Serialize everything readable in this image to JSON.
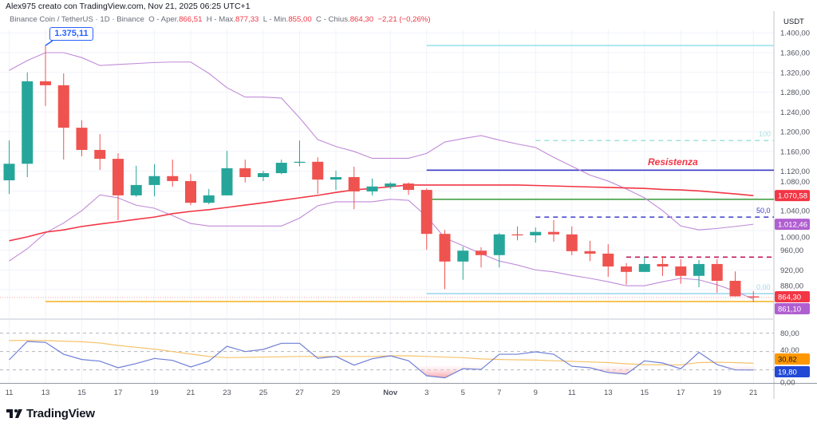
{
  "header": {
    "text": "Alex975 creato con TradingView.com, Nov 21, 2025 06:25 UTC+1"
  },
  "legend": {
    "symbol": "Binance Coin / TetherUS · 1D · Binance",
    "open_label": "O - Aper.",
    "open": "866,51",
    "high_label": "H - Max.",
    "high": "877,33",
    "low_label": "L - Min.",
    "low": "855,00",
    "close_label": "C - Chius.",
    "close": "864,30",
    "change": "−2,21 (−0,26%)"
  },
  "annotations": {
    "high_callout": "1.375,11",
    "resistance_label": "Resistenza",
    "fib_100": "100",
    "fib_50": "50,0",
    "fib_0": "0,00"
  },
  "price_axis": {
    "unit": "USDT",
    "ticks": [
      {
        "value": 1400,
        "label": "1.400,00"
      },
      {
        "value": 1360,
        "label": "1.360,00"
      },
      {
        "value": 1320,
        "label": "1.320,00"
      },
      {
        "value": 1280,
        "label": "1.280,00"
      },
      {
        "value": 1240,
        "label": "1.240,00"
      },
      {
        "value": 1200,
        "label": "1.200,00"
      },
      {
        "value": 1160,
        "label": "1.160,00"
      },
      {
        "value": 1120,
        "label": "1.120,00"
      },
      {
        "value": 1080,
        "label": "1.080,00"
      },
      {
        "value": 1040,
        "label": "1.040,00"
      },
      {
        "value": 1000,
        "label": "1.000,00"
      },
      {
        "value": 960,
        "label": "960,00"
      },
      {
        "value": 920,
        "label": "920,00"
      },
      {
        "value": 880,
        "label": "880,00"
      }
    ],
    "badges": [
      {
        "value": 1070.58,
        "label": "1.070,58",
        "color": "#f23645"
      },
      {
        "value": 1012.46,
        "label": "1.012,46",
        "color": "#b05fd0"
      },
      {
        "value": 864.3,
        "label": "864,30",
        "color": "#f23645"
      },
      {
        "value": 861.1,
        "label": "861,10",
        "color": "#b05fd0"
      }
    ]
  },
  "oscillator_axis": {
    "ticks": [
      {
        "value": 80,
        "label": "80,00"
      },
      {
        "value": 40,
        "label": "40,00"
      },
      {
        "value": 0,
        "label": "0,00"
      }
    ],
    "levels": [
      80,
      50,
      20
    ],
    "badges": [
      {
        "value": 30.82,
        "label": "30,82",
        "color": "#ff9800",
        "text_color": "#131722"
      },
      {
        "value": 19.8,
        "label": "19,80",
        "color": "#2149d6",
        "text_color": "#ffffff"
      }
    ]
  },
  "x_axis": {
    "labels": [
      {
        "day": 0,
        "label": "11"
      },
      {
        "day": 2,
        "label": "13"
      },
      {
        "day": 4,
        "label": "15"
      },
      {
        "day": 6,
        "label": "17"
      },
      {
        "day": 8,
        "label": "19"
      },
      {
        "day": 10,
        "label": "21"
      },
      {
        "day": 12,
        "label": "23"
      },
      {
        "day": 14,
        "label": "25"
      },
      {
        "day": 16,
        "label": "27"
      },
      {
        "day": 18,
        "label": "29"
      },
      {
        "day": 21,
        "label": "Nov"
      },
      {
        "day": 23,
        "label": "3"
      },
      {
        "day": 25,
        "label": "5"
      },
      {
        "day": 27,
        "label": "7"
      },
      {
        "day": 29,
        "label": "9"
      },
      {
        "day": 31,
        "label": "11"
      },
      {
        "day": 33,
        "label": "13"
      },
      {
        "day": 35,
        "label": "15"
      },
      {
        "day": 37,
        "label": "17"
      },
      {
        "day": 39,
        "label": "19"
      },
      {
        "day": 41,
        "label": "21"
      }
    ]
  },
  "colors": {
    "up": "#26a69a",
    "down": "#ef5350",
    "ema": "#f23645",
    "bands": "#c08ad8",
    "rsi": "#6f7fd6",
    "rsi_ma": "#f5c26b",
    "grid": "#f0f3fa"
  },
  "chart_data": {
    "type": "candlestick",
    "candles_ohlc": [
      [
        1101.5,
        1182,
        1074,
        1135
      ],
      [
        1135,
        1320,
        1108,
        1302
      ],
      [
        1302,
        1375.11,
        1252,
        1294
      ],
      [
        1294,
        1318,
        1143.5,
        1208
      ],
      [
        1208,
        1223,
        1150,
        1163
      ],
      [
        1163,
        1195,
        1122.5,
        1145
      ],
      [
        1145,
        1156,
        1020.7,
        1071
      ],
      [
        1071,
        1131,
        1068,
        1092
      ],
      [
        1092,
        1134,
        1069,
        1110
      ],
      [
        1110,
        1143.5,
        1088.6,
        1100
      ],
      [
        1100,
        1114,
        1051,
        1056
      ],
      [
        1056,
        1084,
        1053,
        1071
      ],
      [
        1071,
        1161,
        1071,
        1126
      ],
      [
        1126,
        1143.5,
        1097,
        1108
      ],
      [
        1108,
        1121,
        1100,
        1116
      ],
      [
        1116,
        1143.5,
        1114,
        1137
      ],
      [
        1137,
        1182,
        1130,
        1139
      ],
      [
        1139,
        1148,
        1074,
        1103
      ],
      [
        1103,
        1121,
        1082,
        1108
      ],
      [
        1108,
        1129,
        1043,
        1079
      ],
      [
        1079,
        1105,
        1071,
        1089
      ],
      [
        1089,
        1098,
        1084,
        1095
      ],
      [
        1095,
        1097,
        1072,
        1082
      ],
      [
        1082,
        1085,
        960.9,
        993
      ],
      [
        993,
        1001,
        881,
        937
      ],
      [
        937,
        967,
        900,
        959
      ],
      [
        959,
        966,
        925,
        950
      ],
      [
        950,
        995,
        925,
        992
      ],
      [
        992,
        1008,
        980,
        990
      ],
      [
        990,
        1006,
        975.5,
        997
      ],
      [
        997,
        1021,
        977,
        992
      ],
      [
        992,
        1008,
        950,
        958
      ],
      [
        958,
        979,
        938,
        953
      ],
      [
        953,
        972,
        906,
        927
      ],
      [
        927,
        934,
        890,
        916
      ],
      [
        916,
        946,
        916,
        932
      ],
      [
        932,
        948,
        908,
        927
      ],
      [
        927,
        942,
        892,
        908
      ],
      [
        908,
        940,
        885,
        932
      ],
      [
        932,
        942,
        874,
        898
      ],
      [
        898,
        917,
        866,
        866.5
      ],
      [
        866.51,
        877.33,
        855,
        864.3
      ]
    ],
    "ema": [
      979,
      987,
      996.5,
      1001,
      1008,
      1013,
      1017.5,
      1022.4,
      1027,
      1034,
      1038.5,
      1042,
      1046.6,
      1051.4,
      1056,
      1061,
      1066,
      1071,
      1077,
      1082,
      1085,
      1088.6,
      1092,
      1092,
      1092,
      1092,
      1092,
      1092,
      1092,
      1091,
      1090,
      1089,
      1088,
      1087,
      1086,
      1085,
      1083,
      1082,
      1080,
      1077,
      1074,
      1070.58
    ],
    "bb_upper": [
      1324,
      1344,
      1360,
      1360,
      1350,
      1334,
      1336,
      1338,
      1340,
      1341,
      1341,
      1318,
      1289,
      1270,
      1270,
      1268,
      1228,
      1184,
      1170,
      1160,
      1146,
      1146,
      1146,
      1156,
      1179,
      1186,
      1192,
      1183,
      1175,
      1168,
      1148,
      1130,
      1112,
      1100,
      1084,
      1066,
      1040,
      1009,
      1001,
      1004,
      1008,
      1012.46
    ],
    "bb_lower": [
      938,
      963,
      995,
      1015,
      1040,
      1072,
      1066,
      1051,
      1045,
      1030,
      1014,
      1009,
      1009,
      1009,
      1009,
      1009,
      1025,
      1050,
      1058,
      1058,
      1058,
      1063,
      1061,
      1028,
      985,
      969,
      953,
      938,
      930,
      920,
      916,
      909,
      903,
      896,
      888,
      888,
      896,
      903,
      900,
      890,
      877,
      861.1
    ],
    "levels": [
      {
        "price": 1374.5,
        "from_day": 23,
        "color": "#9be3ea",
        "style": "solid"
      },
      {
        "price": 1182,
        "from_day": 29,
        "color": "#a7e3dc",
        "style": "dashed"
      },
      {
        "price": 1122,
        "from_day": 23,
        "color": "#3f3fc9",
        "style": "solid"
      },
      {
        "price": 1063,
        "from_day": 23,
        "color": "#43a047",
        "style": "solid"
      },
      {
        "price": 1027,
        "from_day": 29,
        "color": "#3f3fc9",
        "style": "dashed"
      },
      {
        "price": 946,
        "from_day": 34,
        "color": "#c2185b",
        "style": "dashed"
      },
      {
        "price": 872,
        "from_day": 23,
        "color": "#9fd8ee",
        "style": "solid"
      },
      {
        "price": 864.3,
        "from_day": -1,
        "color": "#f7a8a8",
        "style": "dotted"
      },
      {
        "price": 856,
        "from_day": 2,
        "color": "#f5b82e",
        "style": "solid"
      }
    ],
    "rsi": [
      36.5,
      66.5,
      65,
      45.6,
      37,
      34.3,
      23.5,
      30.4,
      38.7,
      35.6,
      24.8,
      34.3,
      58.7,
      50,
      53.5,
      63.5,
      63.5,
      39,
      42,
      27.8,
      38.2,
      43,
      35,
      10.4,
      7,
      22,
      20.8,
      45.6,
      45.6,
      49.6,
      45.6,
      26,
      23.5,
      15.7,
      13,
      34.8,
      31.3,
      21.8,
      48.7,
      28.7,
      20,
      19.8
    ],
    "rsi_ma": [
      68,
      68.2,
      68,
      67,
      66,
      64,
      60,
      57,
      54,
      50,
      46,
      42,
      40,
      40.5,
      41,
      41.5,
      42,
      42,
      42,
      42,
      42,
      43,
      43,
      42,
      41,
      40,
      38,
      37,
      36.5,
      36,
      35,
      34,
      33,
      32,
      30,
      28.5,
      28.3,
      28.3,
      32,
      32.5,
      32,
      30.82
    ]
  }
}
